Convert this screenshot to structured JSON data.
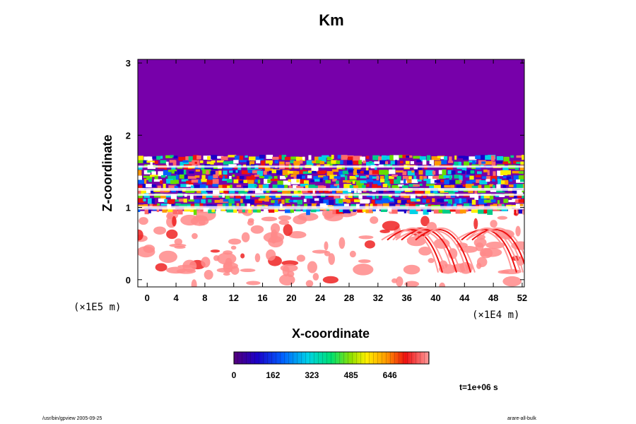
{
  "chart_data": {
    "type": "heatmap",
    "title": "Km",
    "xlabel": "X-coordinate",
    "ylabel": "Z-coordinate",
    "x_scale_note": "(×1E4 m)",
    "y_scale_note": "(×1E5 m)",
    "xlim": [
      -1.3,
      52.3
    ],
    "ylim": [
      -0.1,
      3.05
    ],
    "x_ticks": [
      0,
      4,
      8,
      12,
      16,
      20,
      24,
      28,
      32,
      36,
      40,
      44,
      48,
      52
    ],
    "y_ticks": [
      0,
      1,
      2,
      3
    ],
    "colorbar": {
      "min": 0,
      "max": 808,
      "tick_values": [
        0,
        162,
        323,
        485,
        646
      ],
      "tick_labels": [
        "0",
        "162",
        "323",
        "485",
        "646"
      ]
    },
    "background_color": "#7700aa",
    "time_label": "t=1e+06 s"
  },
  "footer": {
    "left": "/usr/bin/gpview 2005-09-25",
    "right": "arare-all-bulk"
  },
  "colors": {
    "low": "#7700aa",
    "high": "#ff8888"
  }
}
